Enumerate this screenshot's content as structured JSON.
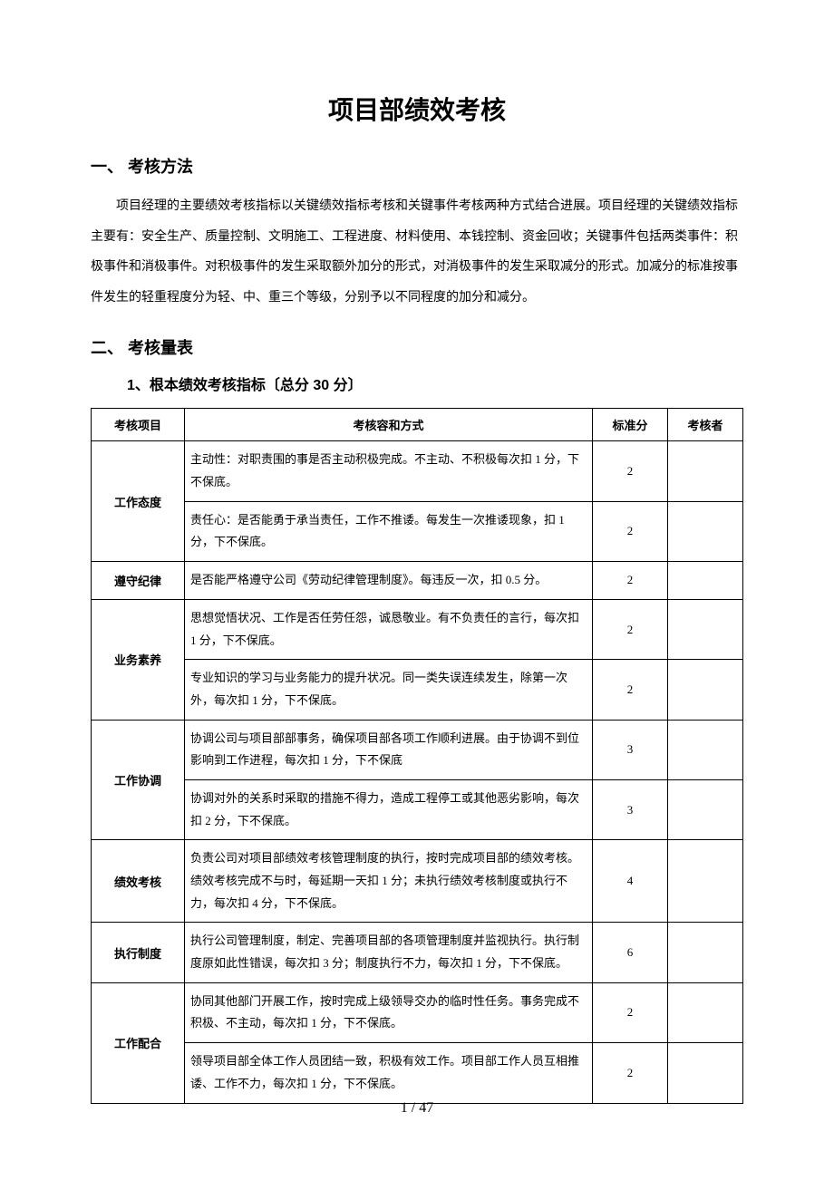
{
  "title": "项目部绩效考核",
  "sections": {
    "s1": {
      "heading": "一、  考核方法",
      "para": "项目经理的主要绩效考核指标以关键绩效指标考核和关键事件考核两种方式结合进展。项目经理的关键绩效指标主要有：安全生产、质量控制、文明施工、工程进度、材料使用、本钱控制、资金回收；关键事件包括两类事件：积极事件和消极事件。对积极事件的发生采取额外加分的形式，对消极事件的发生采取减分的形式。加减分的标准按事件发生的轻重程度分为轻、中、重三个等级，分别予以不同程度的加分和减分。"
    },
    "s2": {
      "heading": "二、  考核量表",
      "sub": "1、根本绩效考核指标〔总分 30 分〕"
    }
  },
  "table": {
    "headers": {
      "c1": "考核项目",
      "c2": "考核容和方式",
      "c3": "标准分",
      "c4": "考核者"
    },
    "rows": [
      {
        "item": "工作态度",
        "content": "主动性：对职责围的事是否主动积极完成。不主动、不积极每次扣 1 分，下不保底。",
        "score": "2",
        "evaluator": "",
        "rowspan": 2
      },
      {
        "item": "",
        "content": "责任心：是否能勇于承当责任，工作不推诿。每发生一次推诿现象，扣 1 分，下不保底。",
        "score": "2",
        "evaluator": ""
      },
      {
        "item": "遵守纪律",
        "content": "是否能严格遵守公司《劳动纪律管理制度》。每违反一次，扣 0.5 分。",
        "score": "2",
        "evaluator": "",
        "rowspan": 1
      },
      {
        "item": "业务素养",
        "content": "思想觉悟状况、工作是否任劳任怨，诚恳敬业。有不负责任的言行，每次扣 1 分，下不保底。",
        "score": "2",
        "evaluator": "",
        "rowspan": 2
      },
      {
        "item": "",
        "content": "专业知识的学习与业务能力的提升状况。同一类失误连续发生，除第一次外，每次扣 1 分，下不保底。",
        "score": "2",
        "evaluator": ""
      },
      {
        "item": "工作协调",
        "content": "协调公司与项目部部事务，确保项目部各项工作顺利进展。由于协调不到位影响到工作进程，每次扣 1 分，下不保底",
        "score": "3",
        "evaluator": "",
        "rowspan": 2
      },
      {
        "item": "",
        "content": "协调对外的关系时采取的措施不得力，造成工程停工或其他恶劣影响，每次扣 2 分，下不保底。",
        "score": "3",
        "evaluator": ""
      },
      {
        "item": "绩效考核",
        "content": "负责公司对项目部绩效考核管理制度的执行，按时完成项目部的绩效考核。绩效考核完成不与时，每延期一天扣 1 分；未执行绩效考核制度或执行不力，每次扣 4 分，下不保底。",
        "score": "4",
        "evaluator": "",
        "rowspan": 1
      },
      {
        "item": "执行制度",
        "content": "执行公司管理制度，制定、完善项目部的各项管理制度并监视执行。执行制度原如此性错误，每次扣 3 分；制度执行不力，每次扣 1 分，下不保底。",
        "score": "6",
        "evaluator": "",
        "rowspan": 1
      },
      {
        "item": "工作配合",
        "content": "协同其他部门开展工作，按时完成上级领导交办的临时性任务。事务完成不积极、不主动，每次扣 1 分，下不保底。",
        "score": "2",
        "evaluator": "",
        "rowspan": 2
      },
      {
        "item": "",
        "content": "领导项目部全体工作人员团结一致，积极有效工作。项目部工作人员互相推诿、工作不力，每次扣 1 分，下不保底。",
        "score": "2",
        "evaluator": ""
      }
    ]
  },
  "pageNum": "1  /  47"
}
